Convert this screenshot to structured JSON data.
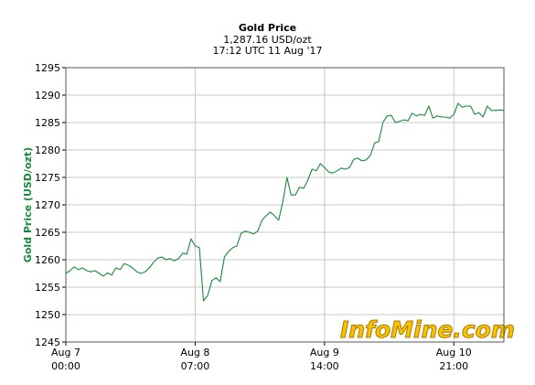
{
  "header": {
    "title": "Gold Price",
    "price": "1,287.16 USD/ozt",
    "timestamp": "17:12 UTC 11 Aug '17"
  },
  "watermark": "InfoMine.com",
  "colors": {
    "line": "#1a8a3a",
    "ylabel": "#1a8a3a",
    "grid": "#c8c8c8",
    "watermark": "#f6c400"
  },
  "chart_data": {
    "type": "line",
    "title": "Gold Price",
    "ylabel": "Gold Price (USD/ozt)",
    "xlabel": "",
    "ylim": [
      1245,
      1295
    ],
    "yticks": [
      1245,
      1250,
      1255,
      1260,
      1265,
      1270,
      1275,
      1280,
      1285,
      1290,
      1295
    ],
    "xlim": [
      0,
      105
    ],
    "xticks": [
      {
        "x": 0,
        "day": "Aug 7",
        "time": "00:00"
      },
      {
        "x": 31,
        "day": "Aug 8",
        "time": "07:00"
      },
      {
        "x": 62,
        "day": "Aug 9",
        "time": "14:00"
      },
      {
        "x": 93,
        "day": "Aug 10",
        "time": "21:00"
      }
    ],
    "x_unit": "hours since Aug 7 00:00 UTC",
    "grid": true,
    "series": [
      {
        "name": "",
        "x": [
          0,
          1,
          2,
          3,
          4,
          5,
          6,
          7,
          8,
          9,
          10,
          11,
          12,
          13,
          14,
          15,
          16,
          17,
          18,
          19,
          20,
          21,
          22,
          23,
          24,
          25,
          26,
          27,
          28,
          29,
          30,
          31,
          32,
          33,
          34,
          35,
          36,
          37,
          38,
          39,
          40,
          41,
          42,
          43,
          44,
          45,
          46,
          47,
          48,
          49,
          50,
          51,
          52,
          53,
          54,
          55,
          56,
          57,
          58,
          59,
          60,
          61,
          62,
          63,
          64,
          65,
          66,
          67,
          68,
          69,
          70,
          71,
          72,
          73,
          74,
          75,
          76,
          77,
          78,
          79,
          80,
          81,
          82,
          83,
          84,
          85,
          86,
          87,
          88,
          89,
          90,
          91,
          92,
          93,
          94,
          95,
          96,
          97,
          98,
          99,
          100,
          101,
          102,
          103,
          104,
          105
        ],
        "y": [
          1257.5,
          1258,
          1258.7,
          1258.2,
          1258.5,
          1258,
          1257.8,
          1258,
          1257.5,
          1257,
          1257.6,
          1257.2,
          1258.5,
          1258.2,
          1259.3,
          1259,
          1258.5,
          1257.8,
          1257.5,
          1257.8,
          1258.5,
          1259.5,
          1260.3,
          1260.5,
          1260,
          1260.2,
          1259.8,
          1260.2,
          1261.2,
          1261,
          1263.8,
          1262.5,
          1262.2,
          1252.5,
          1253.5,
          1256.2,
          1256.7,
          1256,
          1260.5,
          1261.5,
          1262.2,
          1262.5,
          1264.8,
          1265.2,
          1265,
          1264.7,
          1265.2,
          1267.2,
          1268,
          1268.7,
          1268,
          1267.2,
          1270.5,
          1275,
          1271.8,
          1271.8,
          1273.2,
          1273,
          1274.5,
          1276.5,
          1276.2,
          1277.5,
          1276.8,
          1276,
          1275.8,
          1276.2,
          1276.7,
          1276.5,
          1276.8,
          1278.3,
          1278.5,
          1278,
          1278.2,
          1279,
          1281.3,
          1281.5,
          1285,
          1286.2,
          1286.3,
          1285,
          1285.2,
          1285.5,
          1285.3,
          1286.7,
          1286.2,
          1286.5,
          1286.3,
          1288,
          1285.8,
          1286.2,
          1286,
          1286,
          1285.8,
          1286.5,
          1288.5,
          1287.8,
          1288,
          1288,
          1286.5,
          1286.8,
          1286,
          1288,
          1287.2,
          1287.2,
          1287.3,
          1287.2
        ]
      }
    ]
  }
}
